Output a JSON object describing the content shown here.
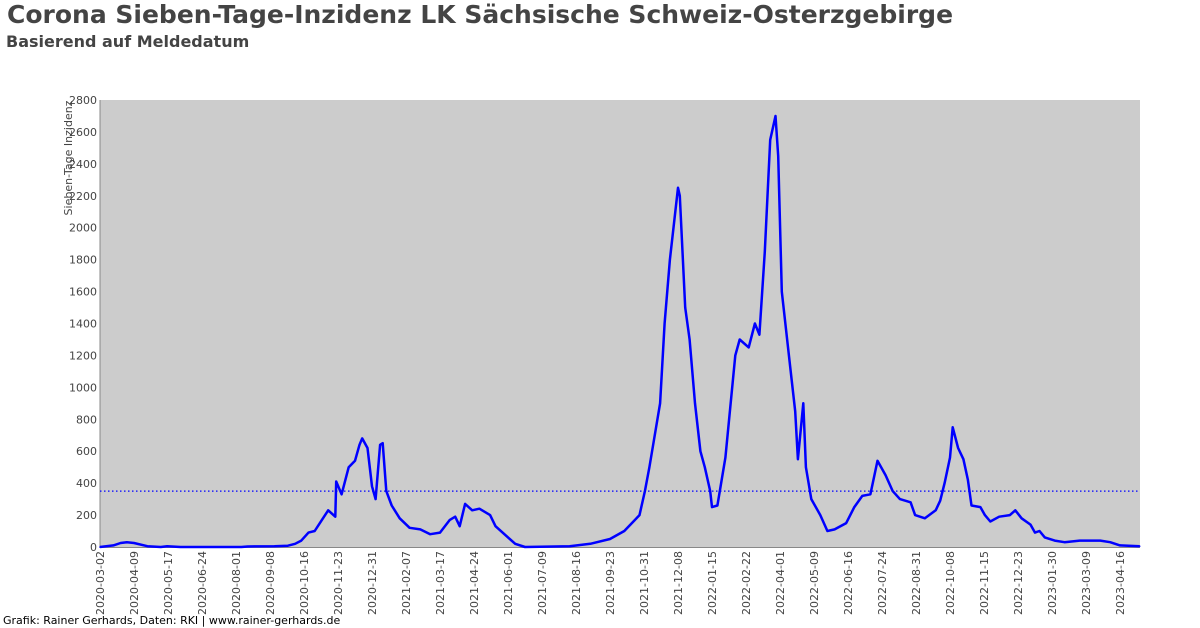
{
  "chart_data": {
    "type": "line",
    "title": "Corona Sieben-Tage-Inzidenz LK Sächsische Schweiz-Osterzgebirge",
    "subtitle": "Basierend auf Meldedatum",
    "xlabel": "",
    "ylabel": "Sieben-Tage Inzidenz",
    "ylim": [
      0,
      2800
    ],
    "x_unit": "days since 2020-03-02",
    "xlim": [
      0,
      1162
    ],
    "yticks": [
      "0",
      "200",
      "400",
      "600",
      "800",
      "1000",
      "1200",
      "1400",
      "1600",
      "1800",
      "2000",
      "2200",
      "2400",
      "2600",
      "2800"
    ],
    "xticks": [
      "2020-03-02",
      "2020-04-09",
      "2020-05-17",
      "2020-06-24",
      "2020-08-01",
      "2020-09-08",
      "2020-10-16",
      "2020-11-23",
      "2020-12-31",
      "2021-02-07",
      "2021-03-17",
      "2021-04-24",
      "2021-06-01",
      "2021-07-09",
      "2021-08-16",
      "2021-09-23",
      "2021-10-31",
      "2021-12-08",
      "2022-01-15",
      "2022-02-22",
      "2022-04-01",
      "2022-05-09",
      "2022-06-16",
      "2022-07-24",
      "2022-08-31",
      "2022-10-08",
      "2022-11-15",
      "2022-12-23",
      "2023-01-30",
      "2023-03-09",
      "2023-04-16"
    ],
    "xtick_step_days": 38,
    "threshold": {
      "value": 350,
      "color": "#0000ff",
      "style": "dotted"
    },
    "grid": false,
    "background": "#cccccc",
    "series": [
      {
        "name": "Sieben-Tage-Inzidenz",
        "color": "#0000ff",
        "x": [
          0,
          15,
          23,
          30,
          38,
          53,
          68,
          75,
          90,
          158,
          165,
          195,
          210,
          218,
          225,
          233,
          240,
          248,
          255,
          263,
          264,
          270,
          278,
          285,
          290,
          293,
          299,
          304,
          308,
          313,
          316,
          320,
          326,
          335,
          346,
          358,
          369,
          380,
          391,
          397,
          402,
          408,
          416,
          424,
          436,
          442,
          452,
          464,
          475,
          525,
          548,
          570,
          586,
          603,
          609,
          614,
          626,
          631,
          637,
          646,
          648,
          654,
          659,
          665,
          671,
          676,
          682,
          684,
          690,
          699,
          710,
          715,
          725,
          732,
          737,
          743,
          749,
          755,
          758,
          762,
          771,
          777,
          780,
          786,
          789,
          795,
          805,
          813,
          821,
          834,
          843,
          852,
          861,
          869,
          878,
          886,
          894,
          906,
          911,
          922,
          934,
          939,
          944,
          950,
          953,
          959,
          965,
          970,
          974,
          984,
          989,
          995,
          1005,
          1017,
          1023,
          1030,
          1040,
          1045,
          1050,
          1056,
          1067,
          1078,
          1095,
          1118,
          1129,
          1140,
          1162
        ],
        "y": [
          0,
          10,
          25,
          30,
          25,
          5,
          0,
          5,
          0,
          0,
          3,
          5,
          8,
          20,
          40,
          90,
          100,
          170,
          230,
          190,
          410,
          330,
          500,
          540,
          640,
          680,
          620,
          380,
          300,
          640,
          650,
          350,
          260,
          180,
          120,
          110,
          80,
          90,
          170,
          190,
          130,
          270,
          230,
          240,
          200,
          130,
          80,
          20,
          0,
          5,
          20,
          50,
          100,
          200,
          350,
          500,
          900,
          1400,
          1800,
          2250,
          2200,
          1500,
          1300,
          900,
          600,
          500,
          350,
          250,
          260,
          560,
          1200,
          1300,
          1250,
          1400,
          1330,
          1850,
          2550,
          2700,
          2450,
          1600,
          1150,
          850,
          550,
          900,
          500,
          300,
          200,
          100,
          110,
          150,
          250,
          320,
          330,
          540,
          450,
          350,
          300,
          280,
          200,
          180,
          230,
          290,
          400,
          560,
          750,
          620,
          550,
          420,
          260,
          250,
          200,
          160,
          190,
          200,
          230,
          180,
          140,
          90,
          100,
          60,
          40,
          30,
          40,
          40,
          30,
          10,
          5
        ]
      }
    ]
  },
  "footer": {
    "credit": "Grafik: Rainer Gerhards, Daten: RKI | www.rainer-gerhards.de"
  }
}
